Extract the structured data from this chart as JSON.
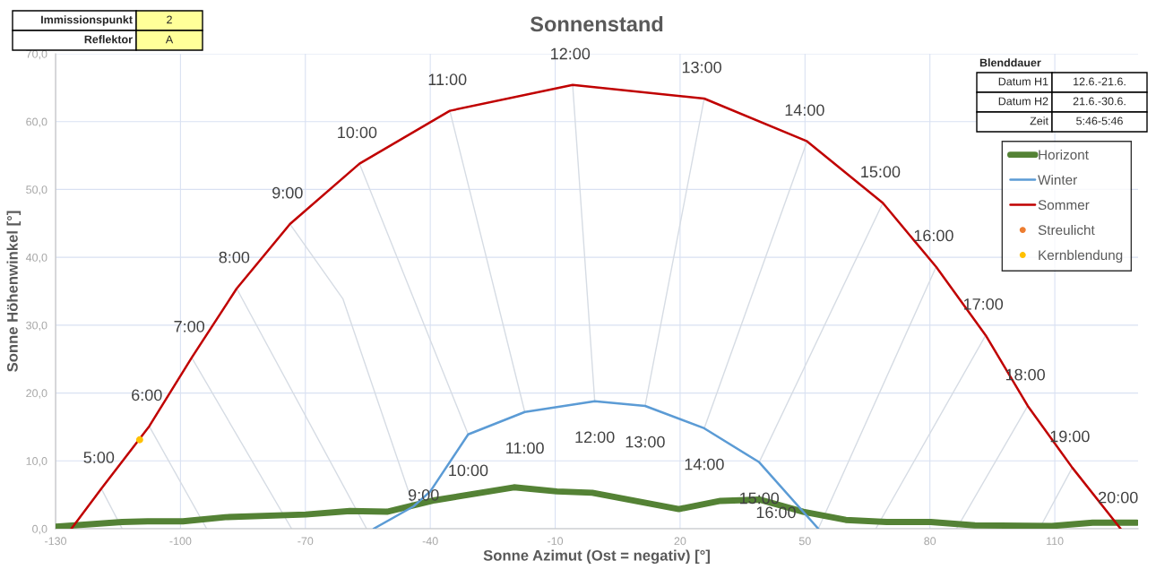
{
  "chart_data": {
    "type": "line",
    "title": "Sonnenstand",
    "xlabel": "Sonne Azimut (Ost = negativ) [°]",
    "ylabel": "Sonne Höhenwinkel [°]",
    "xlim": [
      -130,
      130
    ],
    "xticks": [
      -130,
      -100,
      -70,
      -40,
      -10,
      20,
      50,
      80,
      110
    ],
    "ylim": [
      0,
      70
    ],
    "yticks": [
      {
        "value": 0,
        "label": "0,0"
      },
      {
        "value": 10,
        "label": "10,0"
      },
      {
        "value": 20,
        "label": "20,0"
      },
      {
        "value": 30,
        "label": "30,0"
      },
      {
        "value": 40,
        "label": "40,0"
      },
      {
        "value": 50,
        "label": "50,0"
      },
      {
        "value": 60,
        "label": "60,0"
      },
      {
        "value": 70,
        "label": "70,0"
      }
    ],
    "grid": true,
    "legend": "top right",
    "line_style": "solid",
    "series": [
      {
        "name": "Horizont",
        "color": "#548235",
        "x": [
          -130,
          -114,
          -107.9,
          -99.4,
          -89.2,
          -69.9,
          -59.3,
          -50.4,
          -38.9,
          -19.9,
          -9.6,
          -1.1,
          19.7,
          29.7,
          39.0,
          49.6,
          59.8,
          69.6,
          80.2,
          90.8,
          109.3,
          119.1,
          129.7
        ],
        "values": [
          0.3,
          1.0,
          1.1,
          1.1,
          1.7,
          2.1,
          2.6,
          2.5,
          4.2,
          6.1,
          5.5,
          5.3,
          2.9,
          4.1,
          4.3,
          2.5,
          1.3,
          1.0,
          1.0,
          0.5,
          0.4,
          0.9,
          0.9
        ]
      },
      {
        "name": "Winter",
        "color": "#5b9bd5",
        "x": [
          -53.6,
          -44,
          -40,
          -30.9,
          -17.3,
          -0.5,
          11.6,
          25.8,
          39,
          53.2
        ],
        "values": [
          0,
          3.3,
          5.5,
          13.9,
          17.2,
          18.8,
          18.1,
          14.8,
          9.8,
          0
        ]
      },
      {
        "name": "Sommer",
        "color": "#c00000",
        "x": [
          -126.2,
          -119,
          -107.5,
          -97.3,
          -86.5,
          -73.7,
          -57,
          -35.3,
          -5.8,
          25.8,
          50.5,
          68.7,
          81.5,
          93.4,
          103.5,
          114.2,
          125.8
        ],
        "values": [
          0,
          5.9,
          15.1,
          25.2,
          35.4,
          44.9,
          53.8,
          61.6,
          65.4,
          63.4,
          57.1,
          48.0,
          38.6,
          28.5,
          18.1,
          9.0,
          0
        ]
      },
      {
        "name": "Streulicht",
        "type": "scatter",
        "color": "#ed7d31"
      },
      {
        "name": "Kernblendung",
        "type": "scatter",
        "color": "#ffc000",
        "x": [
          -109.8
        ],
        "values": [
          13.1
        ]
      },
      {
        "color": "#d6dce4",
        "x": [
          -119,
          -114
        ],
        "values": [
          5.9,
          0
        ]
      },
      {
        "color": "#d6dce4",
        "x": [
          -107.5,
          -93.7
        ],
        "values": [
          15.1,
          0
        ]
      },
      {
        "color": "#d6dce4",
        "x": [
          -97.3,
          -73.3
        ],
        "values": [
          25.2,
          0
        ]
      },
      {
        "color": "#d6dce4",
        "x": [
          -86.5,
          -55.3
        ],
        "values": [
          35.4,
          0
        ]
      },
      {
        "color": "#d6dce4",
        "x": [
          -73.7,
          -61,
          -44
        ],
        "values": [
          44.9,
          33.9,
          3.3
        ]
      },
      {
        "color": "#d6dce4",
        "x": [
          -57,
          -30.9
        ],
        "values": [
          53.8,
          13.9
        ]
      },
      {
        "color": "#d6dce4",
        "x": [
          -35.3,
          -17.3
        ],
        "values": [
          61.6,
          17.2
        ]
      },
      {
        "color": "#d6dce4",
        "x": [
          -5.8,
          -0.5
        ],
        "values": [
          65.4,
          18.8
        ]
      },
      {
        "color": "#d6dce4",
        "x": [
          25.8,
          11.6
        ],
        "values": [
          63.4,
          18.1
        ]
      },
      {
        "color": "#d6dce4",
        "x": [
          50.5,
          25.8
        ],
        "values": [
          57.1,
          14.8
        ]
      },
      {
        "color": "#d6dce4",
        "x": [
          68.7,
          39
        ],
        "values": [
          48.0,
          9.8
        ]
      },
      {
        "color": "#d6dce4",
        "x": [
          81.5,
          53.2
        ],
        "values": [
          38.6,
          0
        ]
      },
      {
        "color": "#d6dce4",
        "x": [
          93.4,
          67
        ],
        "values": [
          28.5,
          0
        ]
      },
      {
        "color": "#d6dce4",
        "x": [
          103.5,
          86.4
        ],
        "values": [
          18.1,
          0
        ]
      },
      {
        "color": "#d6dce4",
        "x": [
          114.2,
          106.3
        ],
        "values": [
          9.0,
          0
        ]
      }
    ],
    "annotations": [
      "Immissionspunkt",
      "2",
      "Reflektor",
      "A",
      "Blenddauer",
      "Datum H1",
      "12.6.-21.6.",
      "Datum H2",
      "21.6.-30.6.",
      "Zeit",
      "5:46-5:46",
      {
        "text": "5:00",
        "x": -119,
        "y": 5.9
      },
      {
        "text": "6:00",
        "x": -107.5,
        "y": 15.1
      },
      {
        "text": "7:00",
        "x": -97.3,
        "y": 25.2
      },
      {
        "text": "8:00",
        "x": -86.5,
        "y": 35.4
      },
      {
        "text": "9:00",
        "x": -73.7,
        "y": 44.9
      },
      {
        "text": "10:00",
        "x": -57,
        "y": 53.8
      },
      {
        "text": "11:00",
        "x": -35.3,
        "y": 61.6
      },
      {
        "text": "12:00",
        "x": -5.8,
        "y": 65.4
      },
      {
        "text": "13:00",
        "x": 25.8,
        "y": 63.4
      },
      {
        "text": "14:00",
        "x": 50.5,
        "y": 57.1
      },
      {
        "text": "15:00",
        "x": 68.7,
        "y": 48.0
      },
      {
        "text": "16:00",
        "x": 81.5,
        "y": 38.6
      },
      {
        "text": "17:00",
        "x": 93.4,
        "y": 28.5
      },
      {
        "text": "18:00",
        "x": 103.5,
        "y": 18.1
      },
      {
        "text": "19:00",
        "x": 114.2,
        "y": 9.0
      },
      {
        "text": "20:00",
        "x": 125.8,
        "y": 0
      },
      {
        "text": "9:00",
        "x": -44,
        "y": 3.3
      },
      {
        "text": "10:00",
        "x": -30.9,
        "y": 13.9
      },
      {
        "text": "11:00",
        "x": -17.3,
        "y": 17.2
      },
      {
        "text": "12:00",
        "x": -0.5,
        "y": 18.8
      },
      {
        "text": "13:00",
        "x": 11.6,
        "y": 18.1
      },
      {
        "text": "14:00",
        "x": 25.8,
        "y": 14.8
      },
      {
        "text": "15:00",
        "x": 39,
        "y": 9.8
      },
      {
        "text": "16:00",
        "x": 53.2,
        "y": 0
      }
    ]
  }
}
